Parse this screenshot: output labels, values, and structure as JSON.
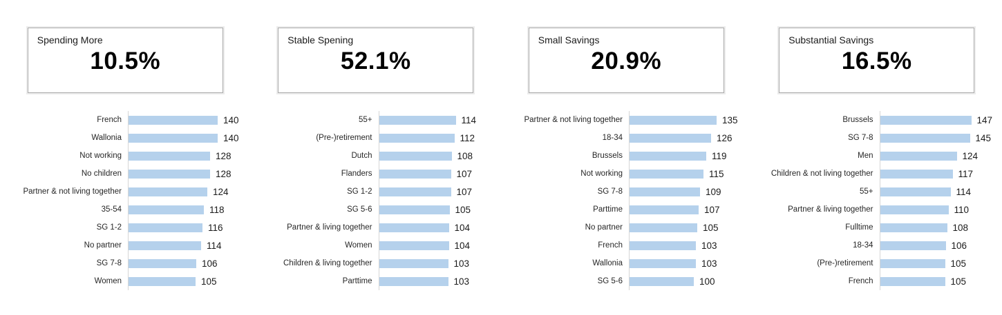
{
  "colors": {
    "bar": "#b5d1ec",
    "axis_line": "#d6d6d6",
    "box_border": "#a9a9a9"
  },
  "chart_data": [
    {
      "type": "bar",
      "orientation": "horizontal",
      "title": "Spending More",
      "percent": "10.5%",
      "axis_max": 152,
      "grid": false,
      "legend": false,
      "categories": [
        "French",
        "Wallonia",
        "Not working",
        "No children",
        "Partner & not living together",
        "35-54",
        "SG 1-2",
        "No partner",
        "SG 7-8",
        "Women"
      ],
      "values": [
        140,
        140,
        128,
        128,
        124,
        118,
        116,
        114,
        106,
        105
      ]
    },
    {
      "type": "bar",
      "orientation": "horizontal",
      "title": "Stable Spening",
      "percent": "52.1%",
      "axis_max": 144,
      "grid": false,
      "legend": false,
      "categories": [
        "55+",
        "(Pre-)retirement",
        "Dutch",
        "Flanders",
        "SG 1-2",
        "SG 5-6",
        "Partner & living together",
        "Women",
        "Children & living together",
        "Parttime"
      ],
      "values": [
        114,
        112,
        108,
        107,
        107,
        105,
        104,
        104,
        103,
        103
      ]
    },
    {
      "type": "bar",
      "orientation": "horizontal",
      "title": "Small Savings",
      "percent": "20.9%",
      "axis_max": 150,
      "grid": false,
      "legend": false,
      "categories": [
        "Partner & not living together",
        "18-34",
        "Brussels",
        "Not working",
        "SG 7-8",
        "Parttime",
        "No partner",
        "French",
        "Wallonia",
        "SG 5-6"
      ],
      "values": [
        135,
        126,
        119,
        115,
        109,
        107,
        105,
        103,
        103,
        100
      ]
    },
    {
      "type": "bar",
      "orientation": "horizontal",
      "title": "Substantial Savings",
      "percent": "16.5%",
      "axis_max": 156,
      "grid": false,
      "legend": false,
      "categories": [
        "Brussels",
        "SG 7-8",
        "Men",
        "Children & not living together",
        "55+",
        "Partner & living together",
        "Fulltime",
        "18-34",
        "(Pre-)retirement",
        "French"
      ],
      "values": [
        147,
        145,
        124,
        117,
        114,
        110,
        108,
        106,
        105,
        105
      ]
    }
  ]
}
